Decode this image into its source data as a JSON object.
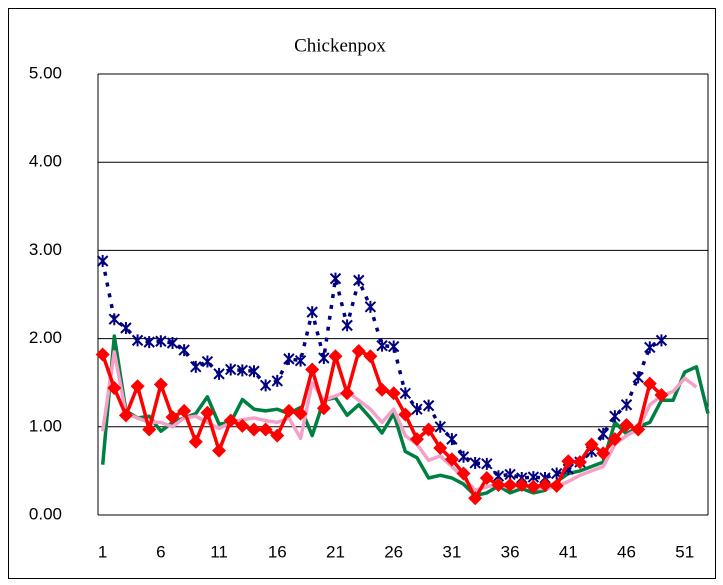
{
  "chart_data": {
    "type": "line",
    "title": "Chickenpox",
    "x": [
      1,
      2,
      3,
      4,
      5,
      6,
      7,
      8,
      9,
      10,
      11,
      12,
      13,
      14,
      15,
      16,
      17,
      18,
      19,
      20,
      21,
      22,
      23,
      24,
      25,
      26,
      27,
      28,
      29,
      30,
      31,
      32,
      33,
      34,
      35,
      36,
      37,
      38,
      39,
      40,
      41,
      42,
      43,
      44,
      45,
      46,
      47,
      48,
      49,
      50,
      51,
      52,
      53
    ],
    "xlim": [
      0.6,
      53
    ],
    "xticks": [
      1,
      6,
      11,
      16,
      21,
      26,
      31,
      36,
      41,
      46,
      51
    ],
    "ylim": [
      0,
      5
    ],
    "yticks": [
      {
        "value": 0,
        "label": "0.00"
      },
      {
        "value": 1,
        "label": "1.00"
      },
      {
        "value": 2,
        "label": "2.00"
      },
      {
        "value": 3,
        "label": "3.00"
      },
      {
        "value": 4,
        "label": "4.00"
      },
      {
        "value": 5,
        "label": "5.00"
      }
    ],
    "grid": true,
    "series": [
      {
        "color": "#008040",
        "values": [
          0.57,
          2.03,
          1.18,
          1.1,
          1.12,
          0.95,
          1.05,
          1.1,
          1.15,
          1.34,
          1.03,
          1.05,
          1.31,
          1.2,
          1.18,
          1.2,
          1.15,
          1.22,
          0.9,
          1.3,
          1.33,
          1.13,
          1.25,
          1.1,
          0.93,
          1.15,
          0.72,
          0.65,
          0.42,
          0.45,
          0.42,
          0.35,
          0.22,
          0.25,
          0.33,
          0.25,
          0.3,
          0.25,
          0.28,
          0.38,
          0.47,
          0.5,
          0.55,
          0.6,
          1.05,
          0.92,
          1.0,
          1.05,
          1.3,
          1.3,
          1.62,
          1.68,
          1.15
        ]
      },
      {
        "color": "#f4a0c8",
        "values": [
          0.95,
          1.85,
          1.15,
          1.1,
          1.05,
          1.05,
          1.0,
          1.1,
          1.12,
          1.05,
          0.98,
          1.05,
          1.08,
          1.1,
          1.07,
          1.05,
          1.1,
          0.87,
          1.5,
          1.3,
          1.35,
          1.4,
          1.3,
          1.2,
          1.05,
          1.2,
          0.9,
          0.8,
          0.62,
          0.67,
          0.55,
          0.42,
          0.28,
          0.32,
          0.35,
          0.3,
          0.35,
          0.3,
          0.3,
          0.32,
          0.38,
          0.45,
          0.5,
          0.55,
          0.8,
          0.9,
          0.97,
          1.25,
          1.35,
          1.4,
          1.55,
          1.45,
          null
        ]
      },
      {
        "color": "#000080",
        "dash": true,
        "marker": "asterisk",
        "values": [
          2.88,
          2.22,
          2.12,
          1.98,
          1.96,
          1.97,
          1.95,
          1.87,
          1.68,
          1.74,
          1.6,
          1.65,
          1.64,
          1.63,
          1.47,
          1.52,
          1.77,
          1.75,
          2.3,
          1.78,
          2.68,
          2.15,
          2.66,
          2.36,
          1.92,
          1.91,
          1.38,
          1.2,
          1.24,
          1.0,
          0.86,
          0.66,
          0.59,
          0.58,
          0.44,
          0.46,
          0.42,
          0.43,
          0.42,
          0.47,
          0.52,
          0.6,
          0.72,
          0.92,
          1.12,
          1.25,
          1.56,
          1.9,
          1.98,
          null,
          null,
          null,
          null
        ]
      },
      {
        "color": "#ff0000",
        "marker": "diamond",
        "values": [
          1.82,
          1.44,
          1.13,
          1.46,
          0.97,
          1.48,
          1.11,
          1.18,
          0.83,
          1.16,
          0.73,
          1.07,
          1.01,
          0.97,
          0.97,
          0.9,
          1.18,
          1.15,
          1.65,
          1.21,
          1.8,
          1.38,
          1.86,
          1.8,
          1.42,
          1.38,
          1.14,
          0.86,
          0.97,
          0.76,
          0.63,
          0.47,
          0.19,
          0.42,
          0.34,
          0.34,
          0.34,
          0.32,
          0.34,
          0.33,
          0.61,
          0.6,
          0.8,
          0.7,
          0.86,
          1.02,
          0.97,
          1.49,
          1.36,
          null,
          null,
          null,
          null
        ]
      }
    ]
  }
}
